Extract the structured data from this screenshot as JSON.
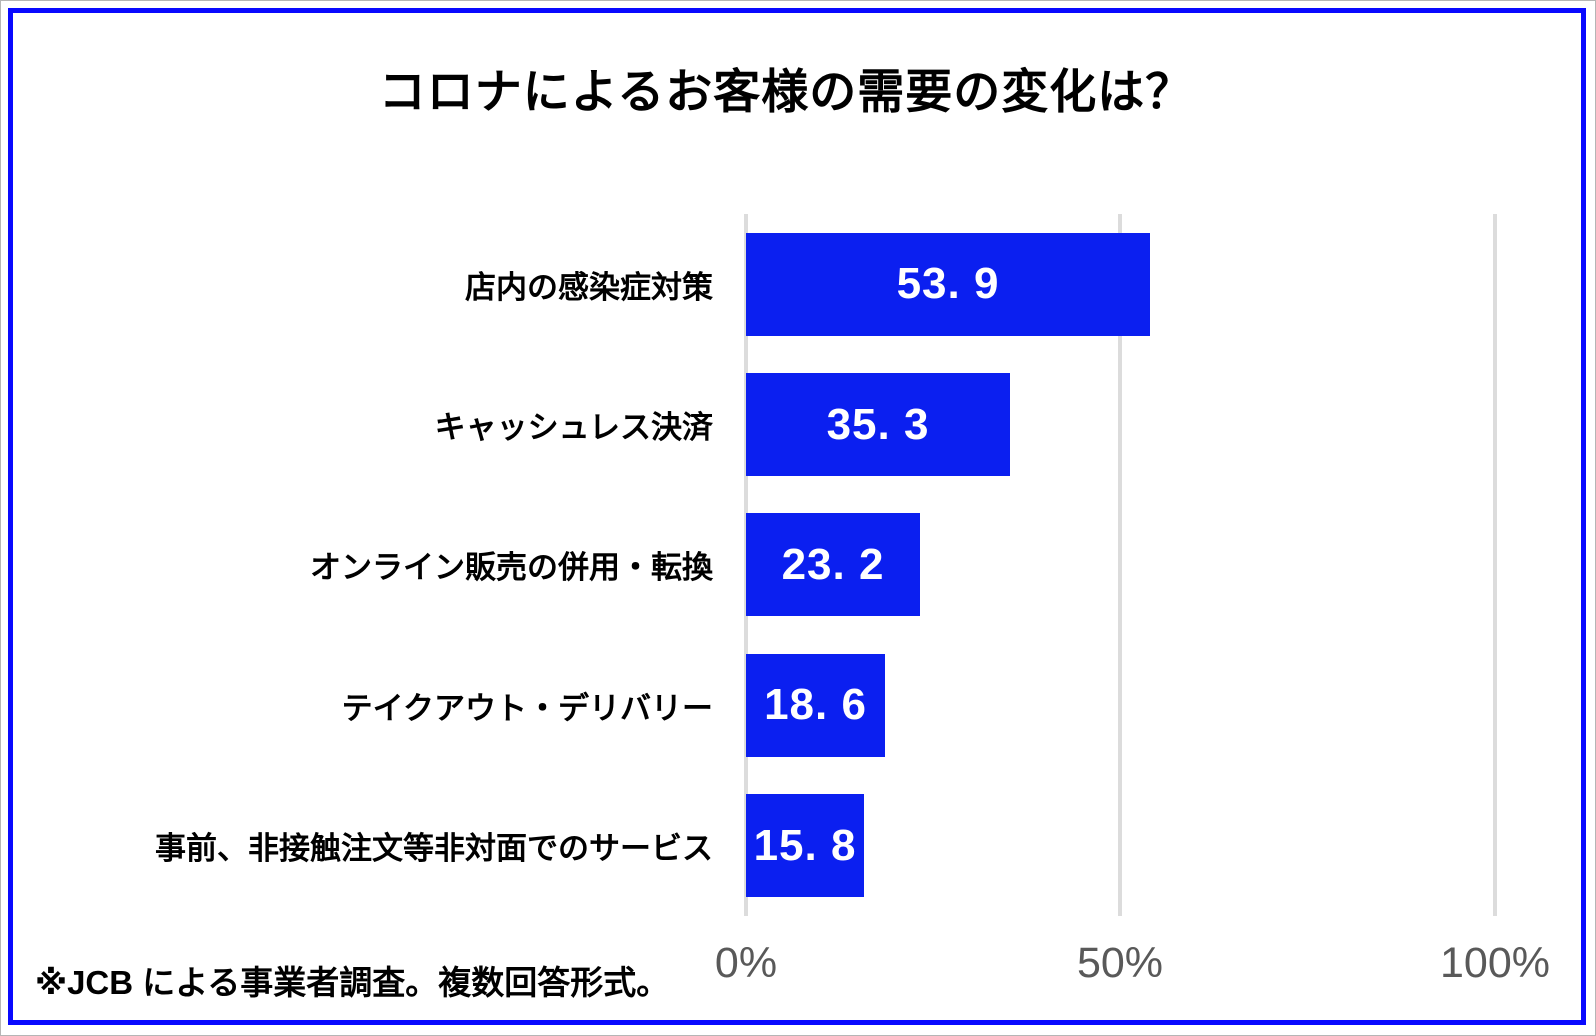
{
  "frame": {
    "color": "#0909ff"
  },
  "title": "コロナによるお客様の需要の変化は？",
  "footnote": "※JCB による事業者調査。複数回答形式。",
  "chart_data": {
    "type": "bar",
    "orientation": "horizontal",
    "title": "コロナによるお客様の需要の変化は？",
    "categories": [
      "店内の感染症対策",
      "キャッシュレス決済",
      "オンライン販売の併用・転換",
      "テイクアウト・デリバリー",
      "事前、非接触注文等非対面でのサービス"
    ],
    "values": [
      53.9,
      35.3,
      23.2,
      18.6,
      15.8
    ],
    "value_labels": [
      "53. 9",
      "35. 3",
      "23. 2",
      "18. 6",
      "15. 8"
    ],
    "x_ticks": [
      "0%",
      "50%",
      "100%"
    ],
    "x_tick_values": [
      0,
      50,
      100
    ],
    "xlim": [
      0,
      100
    ],
    "grid": true,
    "bar_color": "#0b1ff0",
    "value_label_color": "#ffffff",
    "gridline_color": "#dcdcdc",
    "tick_label_color": "#595959",
    "unit": "%"
  }
}
